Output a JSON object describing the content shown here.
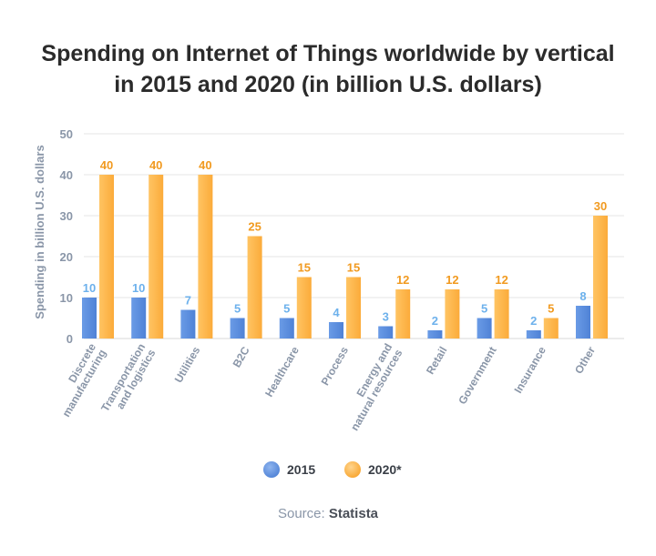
{
  "title": {
    "line1": "Spending on Internet of Things worldwide by vertical",
    "line2": "in 2015 and 2020 (in billion U.S. dollars)"
  },
  "source": {
    "label": "Source:",
    "name": "Statista"
  },
  "colors": {
    "series_2015": "#5b8fe0",
    "series_2015_label": "#6db1ec",
    "series_2020": "#ffb54a",
    "series_2020_label": "#f19a20",
    "grid": "#e6e6e6",
    "axis_text": "#8a96a8"
  },
  "chart_data": {
    "type": "bar",
    "ylabel": "Spending in billion U.S. dollars",
    "xlabel": "",
    "ylim": [
      0,
      50
    ],
    "yticks": [
      0,
      10,
      20,
      30,
      40,
      50
    ],
    "grid": true,
    "legend_position": "bottom",
    "categories": [
      [
        "Discrete",
        "manufacturing"
      ],
      [
        "Transportation",
        "and logistics"
      ],
      [
        "Utilities"
      ],
      [
        "B2C"
      ],
      [
        "Healthcare"
      ],
      [
        "Process"
      ],
      [
        "Energy and",
        "natural resources"
      ],
      [
        "Retail"
      ],
      [
        "Government"
      ],
      [
        "Insurance"
      ],
      [
        "Other"
      ]
    ],
    "series": [
      {
        "name": "2015",
        "values": [
          10,
          10,
          7,
          5,
          5,
          4,
          3,
          2,
          5,
          2,
          8
        ]
      },
      {
        "name": "2020*",
        "values": [
          40,
          40,
          40,
          25,
          15,
          15,
          12,
          12,
          12,
          5,
          30
        ]
      }
    ]
  }
}
